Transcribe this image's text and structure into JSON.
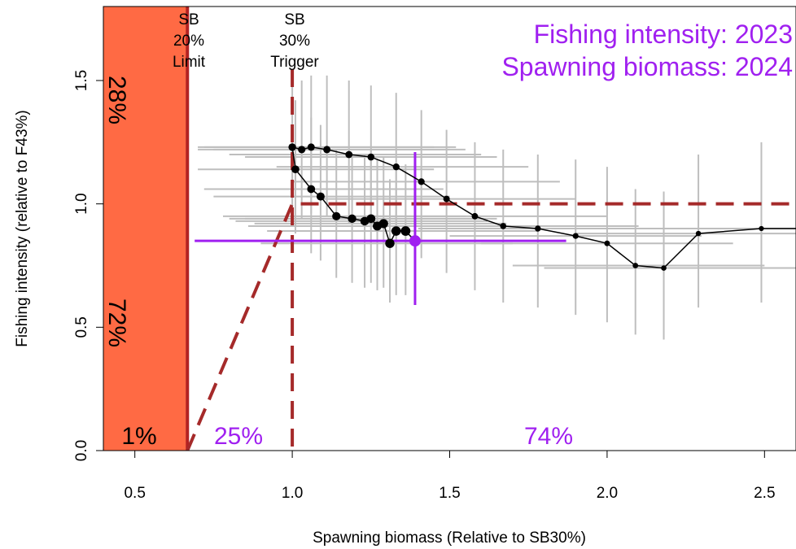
{
  "chart_data": {
    "type": "scatter",
    "xlabel": "Spawning biomass (Relative to SB30%)",
    "ylabel": "Fishing intensity (relative to F43%)",
    "xlim": [
      0.4,
      2.6
    ],
    "ylim": [
      0.0,
      1.8
    ],
    "x_ticks": [
      "0.5",
      "1.0",
      "1.5",
      "2.0",
      "2.5"
    ],
    "x_tick_values": [
      0.5,
      1.0,
      1.5,
      2.0,
      2.5
    ],
    "y_ticks": [
      "0.0",
      "0.5",
      "1.0",
      "1.5"
    ],
    "y_tick_values": [
      0.0,
      0.5,
      1.0,
      1.5
    ],
    "legend_title": {
      "line1": "Fishing intensity: 2023",
      "line2": "Spawning biomass: 2024"
    },
    "reference_lines": {
      "limit": {
        "x": 0.667,
        "label_lines": [
          "SB",
          "20%",
          "Limit"
        ]
      },
      "trigger": {
        "x": 1.0,
        "label_lines": [
          "SB",
          "30%",
          "Trigger"
        ]
      },
      "target_y": 1.0
    },
    "probabilities": {
      "upper_left": "28%",
      "lower_left": "72%",
      "bottom_left": "1%",
      "bottom_mid": "25%",
      "bottom_right": "74%"
    },
    "colors": {
      "limit_zone": "#FF6A44",
      "limit_line": "#B22222",
      "control_rule": "#A52A2A",
      "current_year": "#A020F0",
      "trajectory": "#000000",
      "intervals": "#BEBEBE"
    },
    "current_point": {
      "x": 1.39,
      "y": 0.85,
      "x_lo": 0.69,
      "x_hi": 1.87,
      "y_lo": 0.59,
      "y_hi": 1.21
    },
    "trajectory": [
      {
        "x": 2.62,
        "y": 0.9,
        "xlo": 2.2,
        "xhi": 2.62,
        "ylo": 0.6,
        "yhi": 1.25
      },
      {
        "x": 2.49,
        "y": 0.9,
        "xlo": 2.1,
        "xhi": 2.62,
        "ylo": 0.6,
        "yhi": 1.25
      },
      {
        "x": 2.29,
        "y": 0.88,
        "xlo": 1.9,
        "xhi": 2.62,
        "ylo": 0.58,
        "yhi": 1.2
      },
      {
        "x": 2.18,
        "y": 0.74,
        "xlo": 1.8,
        "xhi": 2.62,
        "ylo": 0.45,
        "yhi": 1.05
      },
      {
        "x": 2.09,
        "y": 0.75,
        "xlo": 1.7,
        "xhi": 2.5,
        "ylo": 0.47,
        "yhi": 1.06
      },
      {
        "x": 2.0,
        "y": 0.84,
        "xlo": 1.6,
        "xhi": 2.4,
        "ylo": 0.52,
        "yhi": 1.15
      },
      {
        "x": 1.9,
        "y": 0.87,
        "xlo": 1.5,
        "xhi": 2.3,
        "ylo": 0.55,
        "yhi": 1.18
      },
      {
        "x": 1.78,
        "y": 0.9,
        "xlo": 1.4,
        "xhi": 2.2,
        "ylo": 0.58,
        "yhi": 1.2
      },
      {
        "x": 1.67,
        "y": 0.91,
        "xlo": 1.3,
        "xhi": 2.1,
        "ylo": 0.6,
        "yhi": 1.22
      },
      {
        "x": 1.58,
        "y": 0.95,
        "xlo": 1.2,
        "xhi": 2.0,
        "ylo": 0.65,
        "yhi": 1.25
      },
      {
        "x": 1.49,
        "y": 1.02,
        "xlo": 1.1,
        "xhi": 1.9,
        "ylo": 0.72,
        "yhi": 1.3
      },
      {
        "x": 1.41,
        "y": 1.09,
        "xlo": 1.0,
        "xhi": 1.85,
        "ylo": 0.78,
        "yhi": 1.38
      },
      {
        "x": 1.33,
        "y": 1.15,
        "xlo": 0.95,
        "xhi": 1.75,
        "ylo": 0.85,
        "yhi": 1.45
      },
      {
        "x": 1.25,
        "y": 1.19,
        "xlo": 0.85,
        "xhi": 1.65,
        "ylo": 0.9,
        "yhi": 1.48
      },
      {
        "x": 1.18,
        "y": 1.2,
        "xlo": 0.8,
        "xhi": 1.6,
        "ylo": 0.92,
        "yhi": 1.5
      },
      {
        "x": 1.11,
        "y": 1.22,
        "xlo": 0.75,
        "xhi": 1.55,
        "ylo": 0.95,
        "yhi": 1.52
      },
      {
        "x": 1.06,
        "y": 1.23,
        "xlo": 0.72,
        "xhi": 1.52,
        "ylo": 0.96,
        "yhi": 1.52
      },
      {
        "x": 1.03,
        "y": 1.22,
        "xlo": 0.7,
        "xhi": 1.5,
        "ylo": 0.94,
        "yhi": 1.5
      },
      {
        "x": 1.0,
        "y": 1.23,
        "xlo": 0.7,
        "xhi": 1.45,
        "ylo": 0.95,
        "yhi": 1.5
      },
      {
        "x": 1.01,
        "y": 1.14,
        "xlo": 0.7,
        "xhi": 1.45,
        "ylo": 0.88,
        "yhi": 1.42
      },
      {
        "x": 1.06,
        "y": 1.06,
        "xlo": 0.72,
        "xhi": 1.48,
        "ylo": 0.8,
        "yhi": 1.35
      },
      {
        "x": 1.09,
        "y": 1.03,
        "xlo": 0.75,
        "xhi": 1.5,
        "ylo": 0.77,
        "yhi": 1.32
      },
      {
        "x": 1.14,
        "y": 0.95,
        "xlo": 0.78,
        "xhi": 1.55,
        "ylo": 0.7,
        "yhi": 1.22
      },
      {
        "x": 1.19,
        "y": 0.94,
        "xlo": 0.8,
        "xhi": 1.6,
        "ylo": 0.68,
        "yhi": 1.2
      },
      {
        "x": 1.23,
        "y": 0.93,
        "xlo": 0.82,
        "xhi": 1.62,
        "ylo": 0.66,
        "yhi": 1.2
      },
      {
        "x": 1.25,
        "y": 0.94,
        "xlo": 0.85,
        "xhi": 1.65,
        "ylo": 0.68,
        "yhi": 1.22
      },
      {
        "x": 1.27,
        "y": 0.91,
        "xlo": 0.86,
        "xhi": 1.66,
        "ylo": 0.65,
        "yhi": 1.18
      },
      {
        "x": 1.29,
        "y": 0.92,
        "xlo": 0.88,
        "xhi": 1.68,
        "ylo": 0.66,
        "yhi": 1.19
      },
      {
        "x": 1.31,
        "y": 0.84,
        "xlo": 0.9,
        "xhi": 1.7,
        "ylo": 0.6,
        "yhi": 1.1
      },
      {
        "x": 1.33,
        "y": 0.89,
        "xlo": 0.92,
        "xhi": 1.72,
        "ylo": 0.63,
        "yhi": 1.16
      },
      {
        "x": 1.36,
        "y": 0.89,
        "xlo": 0.95,
        "xhi": 1.78,
        "ylo": 0.63,
        "yhi": 1.16
      },
      {
        "x": 1.39,
        "y": 0.85,
        "xlo": 0.98,
        "xhi": 1.8,
        "ylo": 0.6,
        "yhi": 1.12
      }
    ]
  }
}
